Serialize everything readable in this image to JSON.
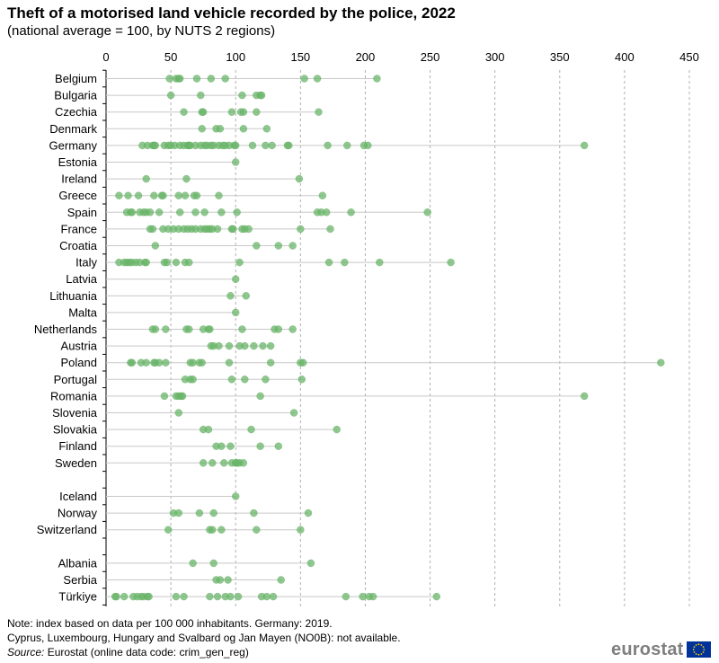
{
  "title": "Theft of a motorised land vehicle recorded by the police, 2022",
  "subtitle": "(national average = 100, by NUTS 2 regions)",
  "note_line1": "Note: index based on data per 100 000 inhabitants. Germany: 2019.",
  "note_line2": "Cyprus, Luxembourg, Hungary and Svalbard og Jan Mayen (NO0B): not available.",
  "source_label": "Source:",
  "source_text": "Eurostat (online data code: crim_gen_reg)",
  "logo_text": "eurostat",
  "colors": {
    "point": "#6ab56a",
    "point_stroke": "#5aa65a",
    "range_line": "#c8c8c8",
    "grid": "#b0b0b0",
    "flag_blue": "#003399",
    "flag_star": "#ffcc00"
  },
  "chart_data": {
    "type": "scatter",
    "orientation": "horizontal-dot-range",
    "xlim": [
      0,
      450
    ],
    "xticks": [
      0,
      50,
      100,
      150,
      200,
      250,
      300,
      350,
      400,
      450
    ],
    "grid": "vertical dashed",
    "categories": [
      {
        "name": "Belgium",
        "values": [
          49,
          54,
          56,
          57,
          70,
          81,
          92,
          153,
          163,
          209
        ]
      },
      {
        "name": "Bulgaria",
        "values": [
          50,
          73,
          105,
          116,
          119,
          120
        ]
      },
      {
        "name": "Czechia",
        "values": [
          60,
          74,
          75,
          97,
          104,
          106,
          116,
          164
        ]
      },
      {
        "name": "Denmark",
        "values": [
          74,
          85,
          88,
          106,
          124
        ]
      },
      {
        "name": "Germany",
        "values": [
          28,
          32,
          36,
          37,
          38,
          45,
          48,
          50,
          53,
          57,
          60,
          63,
          64,
          65,
          69,
          73,
          76,
          78,
          81,
          83,
          87,
          90,
          92,
          95,
          99,
          100,
          113,
          123,
          128,
          140,
          141,
          171,
          186,
          199,
          202,
          369
        ]
      },
      {
        "name": "Estonia",
        "values": [
          100
        ]
      },
      {
        "name": "Ireland",
        "values": [
          31,
          62,
          149
        ]
      },
      {
        "name": "Greece",
        "values": [
          10,
          17,
          25,
          37,
          43,
          44,
          56,
          61,
          68,
          70,
          87,
          167
        ]
      },
      {
        "name": "Spain",
        "values": [
          16,
          19,
          20,
          26,
          29,
          31,
          34,
          41,
          57,
          69,
          76,
          89,
          101,
          163,
          166,
          170,
          189,
          248
        ]
      },
      {
        "name": "France",
        "values": [
          34,
          36,
          44,
          48,
          52,
          56,
          60,
          63,
          66,
          69,
          73,
          76,
          78,
          80,
          82,
          86,
          97,
          98,
          105,
          107,
          110,
          150,
          173
        ]
      },
      {
        "name": "Croatia",
        "values": [
          38,
          116,
          133,
          144
        ]
      },
      {
        "name": "Italy",
        "values": [
          10,
          14,
          16,
          18,
          20,
          23,
          26,
          30,
          31,
          45,
          47,
          54,
          61,
          64,
          103,
          172,
          184,
          211,
          266
        ]
      },
      {
        "name": "Latvia",
        "values": [
          100
        ]
      },
      {
        "name": "Lithuania",
        "values": [
          96,
          108
        ]
      },
      {
        "name": "Malta",
        "values": [
          100
        ]
      },
      {
        "name": "Netherlands",
        "values": [
          36,
          38,
          46,
          62,
          64,
          75,
          79,
          80,
          105,
          130,
          133,
          144
        ]
      },
      {
        "name": "Austria",
        "values": [
          81,
          83,
          87,
          95,
          103,
          107,
          114,
          121,
          127
        ]
      },
      {
        "name": "Poland",
        "values": [
          19,
          20,
          27,
          31,
          37,
          38,
          41,
          46,
          65,
          67,
          72,
          74,
          95,
          127,
          150,
          152,
          428
        ]
      },
      {
        "name": "Portugal",
        "values": [
          61,
          65,
          67,
          97,
          107,
          123,
          151
        ]
      },
      {
        "name": "Romania",
        "values": [
          45,
          54,
          56,
          58,
          59,
          119,
          369
        ]
      },
      {
        "name": "Slovenia",
        "values": [
          56,
          145
        ]
      },
      {
        "name": "Slovakia",
        "values": [
          75,
          79,
          112,
          178
        ]
      },
      {
        "name": "Finland",
        "values": [
          85,
          89,
          96,
          119,
          133
        ]
      },
      {
        "name": "Sweden",
        "values": [
          75,
          82,
          91,
          97,
          100,
          101,
          103,
          106
        ]
      },
      {
        "name": "",
        "values": []
      },
      {
        "name": "Iceland",
        "values": [
          100
        ]
      },
      {
        "name": "Norway",
        "values": [
          52,
          56,
          72,
          83,
          114,
          156
        ]
      },
      {
        "name": "Switzerland",
        "values": [
          48,
          80,
          82,
          89,
          116,
          150
        ]
      },
      {
        "name": "",
        "values": []
      },
      {
        "name": "Albania",
        "values": [
          67,
          83,
          158
        ]
      },
      {
        "name": "Serbia",
        "values": [
          85,
          88,
          94,
          135
        ]
      },
      {
        "name": "Türkiye",
        "values": [
          7,
          8,
          14,
          21,
          24,
          27,
          29,
          32,
          33,
          54,
          60,
          80,
          86,
          92,
          96,
          102,
          120,
          124,
          129,
          185,
          198,
          203,
          206,
          255
        ]
      }
    ]
  }
}
